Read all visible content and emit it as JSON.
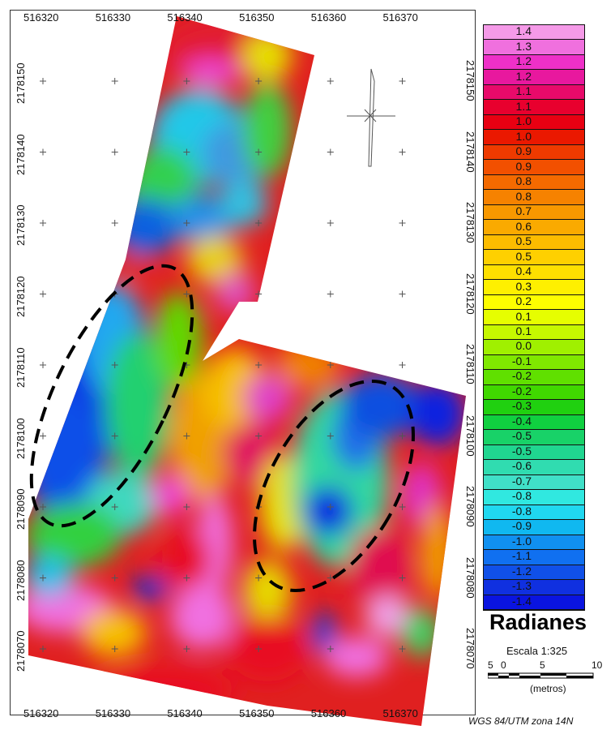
{
  "map": {
    "x_ticks": [
      "516320",
      "516330",
      "516340",
      "516350",
      "516360",
      "516370"
    ],
    "y_ticks": [
      "2178150",
      "2178140",
      "2178130",
      "2178120",
      "2178110",
      "2178100",
      "2178090",
      "2178080",
      "2178070"
    ],
    "x_range": [
      516318,
      516379
    ],
    "y_range": [
      2178064,
      2178159
    ]
  },
  "legend": {
    "labels": [
      "1.4",
      "1.3",
      "1.2",
      "1.2",
      "1.1",
      "1.1",
      "1.0",
      "1.0",
      "0.9",
      "0.9",
      "0.8",
      "0.8",
      "0.7",
      "0.6",
      "0.5",
      "0.5",
      "0.4",
      "0.3",
      "0.2",
      "0.1",
      "0.1",
      "0.0",
      "-0.1",
      "-0.2",
      "-0.2",
      "-0.3",
      "-0.4",
      "-0.5",
      "-0.5",
      "-0.6",
      "-0.7",
      "-0.8",
      "-0.8",
      "-0.9",
      "-1.0",
      "-1.1",
      "-1.2",
      "-1.3",
      "-1.4"
    ],
    "colors": [
      "#f59ae8",
      "#f070de",
      "#ee30c8",
      "#e8189e",
      "#e80a6a",
      "#e8002e",
      "#e80012",
      "#ea1800",
      "#ee3a00",
      "#f25000",
      "#f46a00",
      "#f68200",
      "#f89800",
      "#faaa00",
      "#fcbc00",
      "#fed000",
      "#fee000",
      "#fef000",
      "#fefe00",
      "#e6fe00",
      "#c6f800",
      "#a0f000",
      "#80e800",
      "#60e000",
      "#40d800",
      "#20d010",
      "#10d040",
      "#18d268",
      "#20d690",
      "#30dcb0",
      "#40e0c8",
      "#30e8e0",
      "#20d8f0",
      "#10b8f0",
      "#1090f0",
      "#1070f0",
      "#1050e8",
      "#1030e0",
      "#0a14e0"
    ],
    "units": "Radianes"
  },
  "scale": {
    "title": "Escala 1:325",
    "ticks": [
      "5",
      "0",
      "5",
      "10"
    ],
    "units": "(metros)"
  },
  "crs": "WGS 84/UTM zona 14N"
}
